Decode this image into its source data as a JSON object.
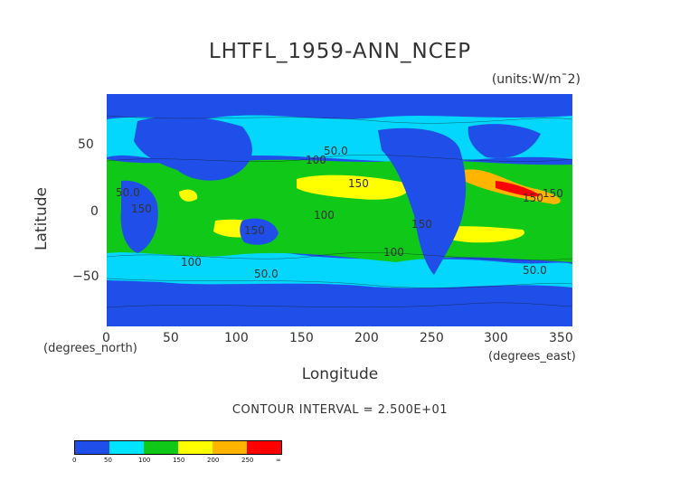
{
  "title": "LHTFL_1959-ANN_NCEP",
  "units": "(units:W/m¯2)",
  "contour_note": "CONTOUR INTERVAL = 2.500E+01",
  "axes": {
    "ylabel": "Latitude",
    "xlabel": "Longitude",
    "x_sub": "(degrees_north)",
    "x_sub2": "(degrees_east)",
    "x_ticks": [
      "0",
      "50",
      "100",
      "150",
      "200",
      "250",
      "300",
      "350"
    ],
    "y_ticks": [
      "50",
      "0",
      "−50"
    ]
  },
  "contour_labels": [
    "50.0",
    "100",
    "150",
    "50.0",
    "150",
    "150",
    "100",
    "150",
    "100",
    "150",
    "100",
    "50.0",
    "50.0",
    "150"
  ],
  "legend": {
    "colors": [
      "#1f4fe8",
      "#1f4fe8",
      "#00e5ff",
      "#00e5ff",
      "#10c818",
      "#10c818",
      "#ffff00",
      "#ffff00",
      "#ffb400",
      "#ffb400",
      "#ff0000",
      "#ff0000"
    ],
    "labels": [
      "0",
      "50",
      "100",
      "150",
      "200",
      "250",
      "∞"
    ]
  },
  "chart_data": {
    "type": "heatmap",
    "title": "LHTFL_1959-ANN_NCEP",
    "xlabel": "Longitude",
    "ylabel": "Latitude",
    "xlim": [
      0,
      360
    ],
    "ylim": [
      -90,
      90
    ],
    "x_ticks": [
      0,
      50,
      100,
      150,
      200,
      250,
      300,
      350
    ],
    "y_ticks": [
      50,
      0,
      -50
    ],
    "contour_interval": 25,
    "color_levels": [
      0,
      25,
      50,
      75,
      100,
      125,
      150,
      175,
      200,
      225,
      250,
      275
    ],
    "value_range": [
      0,
      275
    ]
  }
}
